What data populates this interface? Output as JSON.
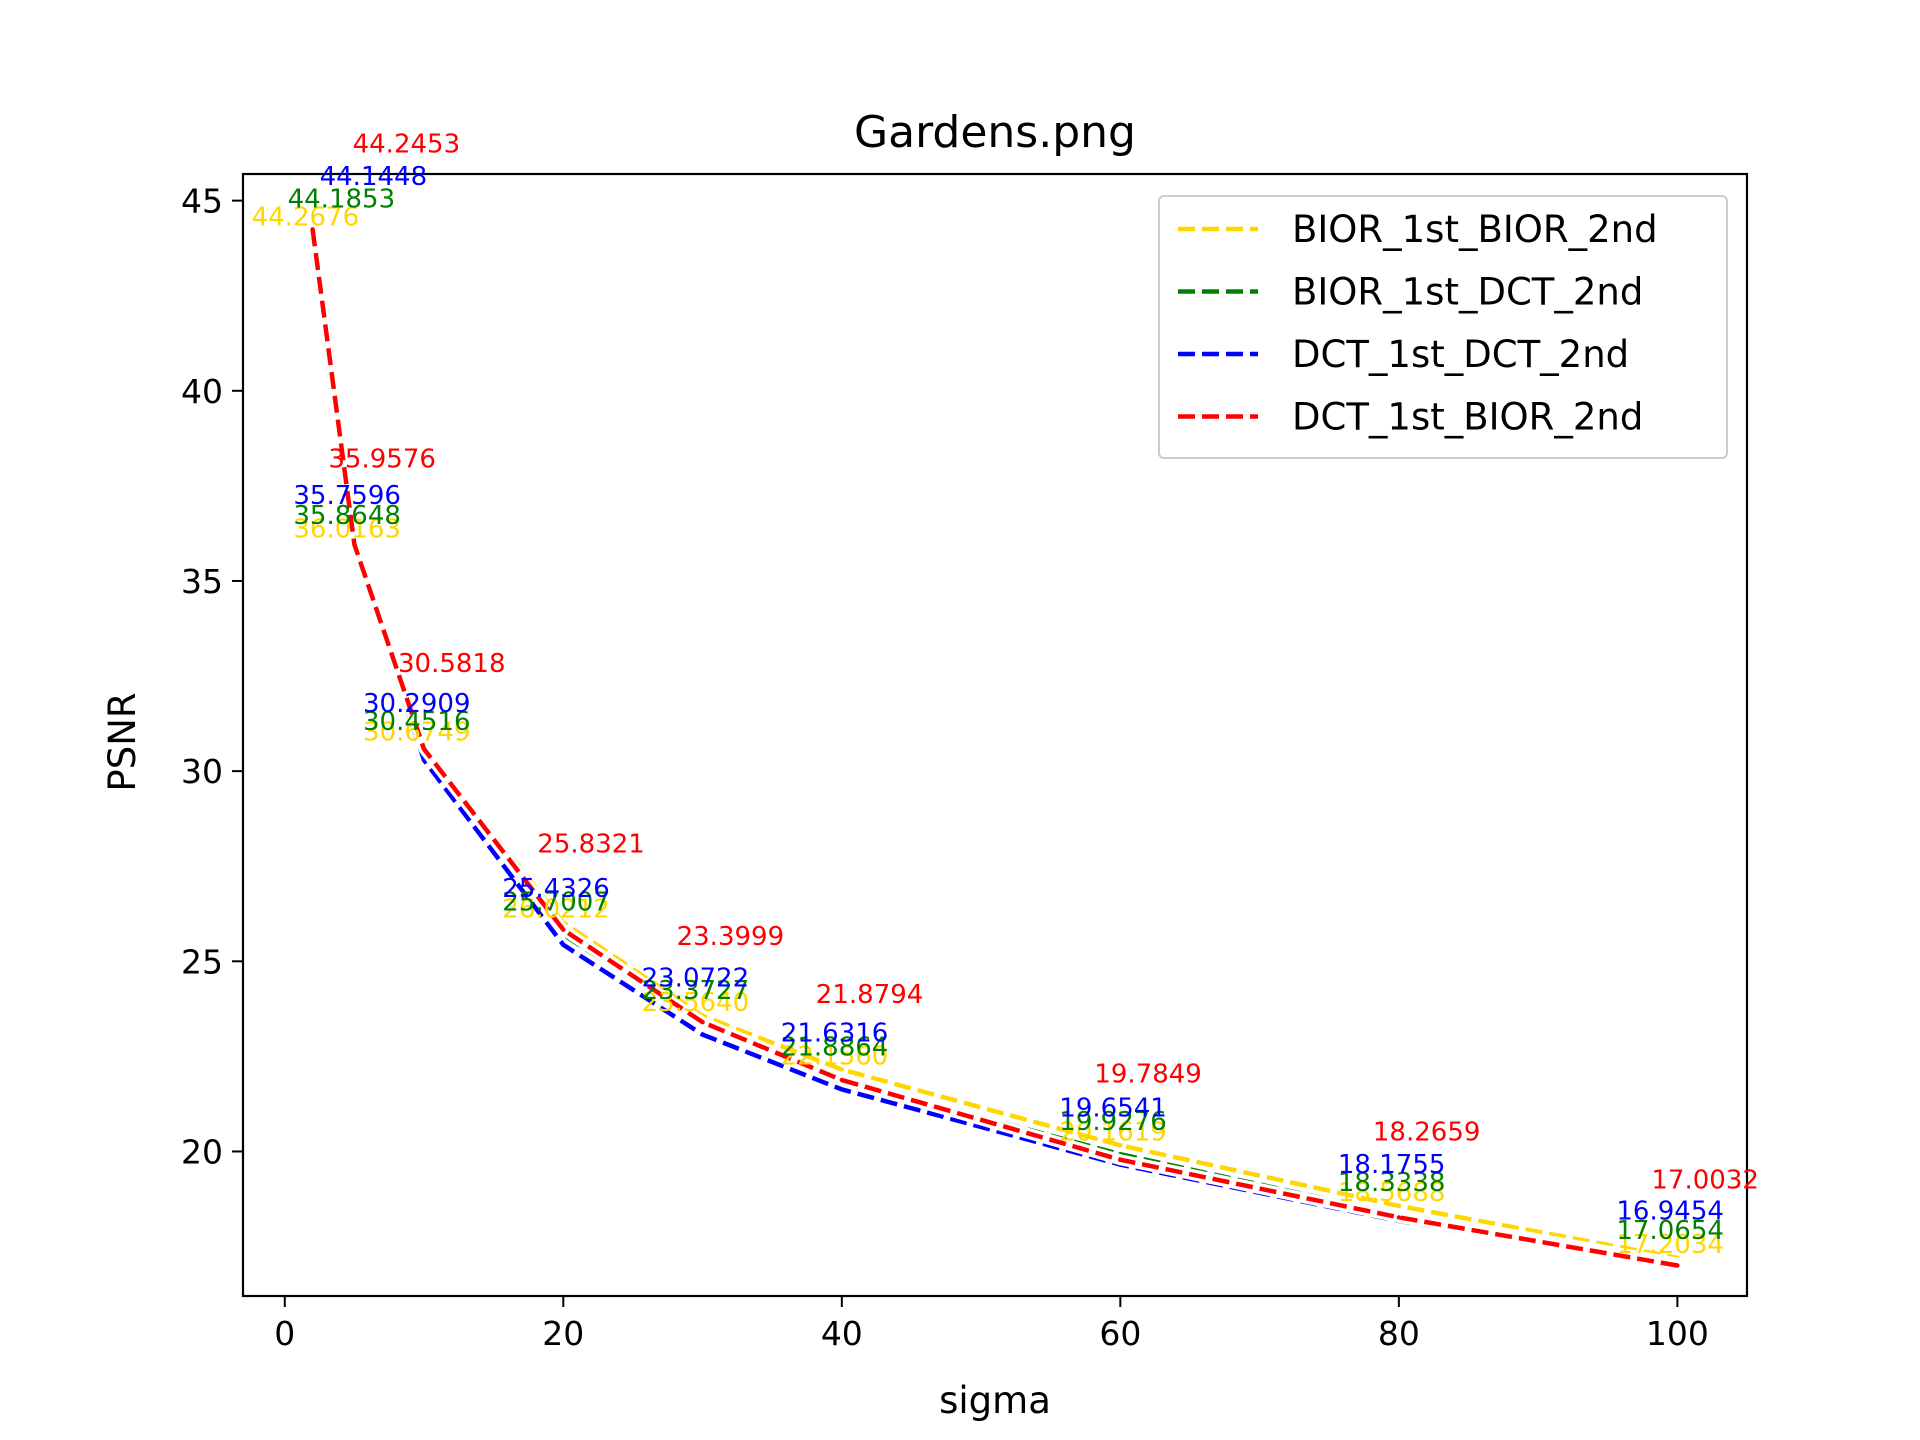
{
  "chart_data": {
    "type": "line",
    "title": "Gardens.png",
    "xlabel": "sigma",
    "ylabel": "PSNR",
    "xlim": [
      -3,
      105
    ],
    "ylim": [
      16.2,
      45.7
    ],
    "xticks": [
      0,
      20,
      40,
      60,
      80,
      100
    ],
    "yticks": [
      20,
      25,
      30,
      35,
      40,
      45
    ],
    "grid": false,
    "legend_position": "top-right",
    "x": [
      2,
      5,
      10,
      20,
      30,
      40,
      60,
      80,
      100
    ],
    "series": [
      {
        "name": "BIOR_1st_BIOR_2nd",
        "color": "#FFD700",
        "values": [
          44.2676,
          36.0163,
          30.6749,
          26.0212,
          23.564,
          22.156,
          20.1619,
          18.5688,
          17.2034
        ],
        "labels": [
          "44.2676",
          "36.0163",
          "30.6749",
          "26.0212",
          "23.5640",
          "22.1560",
          "20.1619",
          "18.5688",
          "17.2034"
        ]
      },
      {
        "name": "BIOR_1st_DCT_2nd",
        "color": "#008000",
        "values": [
          44.1853,
          35.8648,
          30.4516,
          25.7007,
          23.3727,
          21.8864,
          19.9276,
          18.3338,
          17.0654
        ],
        "labels": [
          "44.1853",
          "35.8648",
          "30.4516",
          "25.7007",
          "23.3727",
          "21.8864",
          "19.9276",
          "18.3338",
          "17.0654"
        ]
      },
      {
        "name": "DCT_1st_DCT_2nd",
        "color": "#0000FF",
        "values": [
          44.1448,
          35.7596,
          30.2909,
          25.4326,
          23.0722,
          21.6316,
          19.6541,
          18.1755,
          16.9454
        ],
        "labels": [
          "44.1448",
          "35.7596",
          "30.2909",
          "25.4326",
          "23.0722",
          "21.6316",
          "19.6541",
          "18.1755",
          "16.9454"
        ]
      },
      {
        "name": "DCT_1st_BIOR_2nd",
        "color": "#FF0000",
        "values": [
          44.2453,
          35.9576,
          30.5818,
          25.8321,
          23.3999,
          21.8794,
          19.7849,
          18.2659,
          17.0032
        ],
        "labels": [
          "44.2453",
          "35.9576",
          "30.5818",
          "25.8321",
          "23.3999",
          "21.8794",
          "19.7849",
          "18.2659",
          "17.0032"
        ]
      }
    ]
  }
}
